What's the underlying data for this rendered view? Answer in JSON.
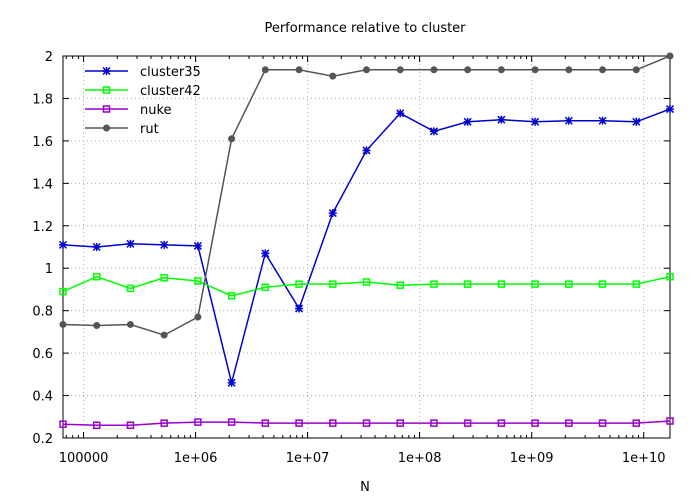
{
  "chart_data": {
    "type": "line",
    "title": "Performance relative to cluster",
    "xlabel": "N",
    "ylabel": "",
    "xscale": "log",
    "xlim": [
      65536,
      17179869184
    ],
    "ylim": [
      0.2,
      2.0
    ],
    "grid": true,
    "legend_position": "top-left",
    "x_ticks": [
      {
        "value": 100000,
        "label": "100000"
      },
      {
        "value": 1000000,
        "label": "1e+06"
      },
      {
        "value": 10000000,
        "label": "1e+07"
      },
      {
        "value": 100000000,
        "label": "1e+08"
      },
      {
        "value": 1000000000,
        "label": "1e+09"
      },
      {
        "value": 10000000000,
        "label": "1e+10"
      }
    ],
    "y_ticks": [
      {
        "value": 0.2,
        "label": "0.2"
      },
      {
        "value": 0.4,
        "label": "0.4"
      },
      {
        "value": 0.6,
        "label": "0.6"
      },
      {
        "value": 0.8,
        "label": "0.8"
      },
      {
        "value": 1.0,
        "label": "1"
      },
      {
        "value": 1.2,
        "label": "1.2"
      },
      {
        "value": 1.4,
        "label": "1.4"
      },
      {
        "value": 1.6,
        "label": "1.6"
      },
      {
        "value": 1.8,
        "label": "1.8"
      },
      {
        "value": 2.0,
        "label": "2"
      }
    ],
    "x": [
      65536,
      131072,
      262144,
      524288,
      1048576,
      2097152,
      4194304,
      8388608,
      16777216,
      33554432,
      67108864,
      134217728,
      268435456,
      536870912,
      1073741824,
      2147483648,
      4294967296,
      8589934592,
      17179869184
    ],
    "series": [
      {
        "name": "cluster35",
        "color": "#0000cc",
        "marker": "star",
        "values": [
          1.11,
          1.1,
          1.115,
          1.11,
          1.105,
          0.46,
          1.07,
          0.81,
          1.26,
          1.555,
          1.73,
          1.645,
          1.69,
          1.7,
          1.69,
          1.695,
          1.695,
          1.69,
          1.75
        ]
      },
      {
        "name": "cluster42",
        "color": "#00ff00",
        "marker": "square",
        "values": [
          0.89,
          0.96,
          0.905,
          0.955,
          0.94,
          0.87,
          0.91,
          0.925,
          0.925,
          0.935,
          0.92,
          0.925,
          0.925,
          0.925,
          0.925,
          0.925,
          0.925,
          0.925,
          0.96
        ]
      },
      {
        "name": "nuke",
        "color": "#9900cc",
        "marker": "square",
        "values": [
          0.265,
          0.26,
          0.26,
          0.27,
          0.275,
          0.275,
          0.27,
          0.27,
          0.27,
          0.27,
          0.27,
          0.27,
          0.27,
          0.27,
          0.27,
          0.27,
          0.27,
          0.27,
          0.28
        ]
      },
      {
        "name": "rut",
        "color": "#555555",
        "marker": "circle",
        "values": [
          0.735,
          0.73,
          0.735,
          0.685,
          0.77,
          1.61,
          1.935,
          1.935,
          1.905,
          1.935,
          1.935,
          1.935,
          1.935,
          1.935,
          1.935,
          1.935,
          1.935,
          1.935,
          2.0
        ]
      }
    ]
  }
}
